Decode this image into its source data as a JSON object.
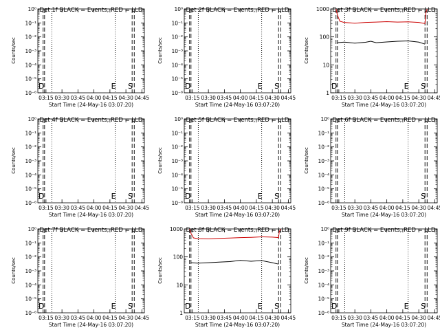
{
  "figure": {
    "background": "#ffffff",
    "event_color": "#000000",
    "lld_color": "#cc0000"
  },
  "chart_data": [
    {
      "type": "line",
      "title": "Det 1f BLACK = Events, RED = LLD",
      "xlabel": "Start Time (24-May-16 03:07:20)",
      "ylabel": "Counts/sec",
      "xticks": [
        "03:15",
        "03:30",
        "03:45",
        "04:00",
        "04:15",
        "04:30",
        "04:45"
      ],
      "xlim": [
        "03:07:20",
        "04:47:20"
      ],
      "yscale": "log",
      "yticks": [
        "10⁰",
        "10⁻¹",
        "10⁻²",
        "10⁻³",
        "10⁻⁴",
        "10⁻⁵",
        "10⁻⁶"
      ],
      "ylim": [
        1e-06,
        1
      ],
      "grid": false,
      "markers": [
        {
          "time": "03:12:20",
          "style": "dashed",
          "label": "D"
        },
        {
          "time": "03:13:40",
          "style": "dashed",
          "label": ""
        },
        {
          "time": "03:20:30",
          "style": "dotted",
          "label": ""
        },
        {
          "time": "04:20:00",
          "style": "dotted",
          "label": "E"
        },
        {
          "time": "04:35:50",
          "style": "dashed",
          "label": "S"
        },
        {
          "time": "04:37:50",
          "style": "dashed",
          "label": ""
        }
      ],
      "series": []
    },
    {
      "type": "line",
      "title": "Det 2f BLACK = Events, RED = LLD",
      "xlabel": "Start Time (24-May-16 03:07:20)",
      "ylabel": "Counts/sec",
      "xticks": [
        "03:15",
        "03:30",
        "03:45",
        "04:00",
        "04:15",
        "04:30",
        "04:45"
      ],
      "xlim": [
        "03:07:20",
        "04:47:20"
      ],
      "yscale": "log",
      "yticks": [
        "10⁰",
        "10⁻¹",
        "10⁻²",
        "10⁻³",
        "10⁻⁴",
        "10⁻⁵",
        "10⁻⁶"
      ],
      "ylim": [
        1e-06,
        1
      ],
      "grid": false,
      "markers": [
        {
          "time": "03:12:20",
          "style": "dashed",
          "label": "D"
        },
        {
          "time": "03:13:40",
          "style": "dashed",
          "label": ""
        },
        {
          "time": "03:20:30",
          "style": "dotted",
          "label": ""
        },
        {
          "time": "04:20:00",
          "style": "dotted",
          "label": "E"
        },
        {
          "time": "04:35:50",
          "style": "dashed",
          "label": "S"
        },
        {
          "time": "04:37:50",
          "style": "dashed",
          "label": ""
        }
      ],
      "series": []
    },
    {
      "type": "line",
      "title": "Det 3f BLACK = Events, RED = LLD",
      "xlabel": "Start Time (24-May-16 03:07:20)",
      "ylabel": "Counts/sec",
      "xticks": [
        "03:15",
        "03:30",
        "03:45",
        "04:00",
        "04:15",
        "04:30",
        "04:45"
      ],
      "xlim": [
        "03:07:20",
        "04:47:20"
      ],
      "yscale": "log",
      "yticks": [
        "1",
        "10",
        "100",
        "1000"
      ],
      "ylim": [
        1,
        1000
      ],
      "grid": false,
      "markers": [
        {
          "time": "03:12:20",
          "style": "dashed",
          "label": "D"
        },
        {
          "time": "03:13:40",
          "style": "dashed",
          "label": ""
        },
        {
          "time": "03:20:30",
          "style": "dotted",
          "label": ""
        },
        {
          "time": "04:20:00",
          "style": "dotted",
          "label": "E"
        },
        {
          "time": "04:35:50",
          "style": "dashed",
          "label": "S"
        },
        {
          "time": "04:37:50",
          "style": "dashed",
          "label": ""
        }
      ],
      "series": [
        {
          "role": "events",
          "color": "#000000",
          "x": [
            "03:13:40",
            "03:20",
            "03:30",
            "03:40",
            "03:45",
            "03:50",
            "04:00",
            "04:10",
            "04:20",
            "04:30",
            "04:35:50"
          ],
          "y": [
            62,
            65,
            60,
            64,
            70,
            62,
            66,
            70,
            72,
            65,
            55
          ]
        },
        {
          "role": "lld",
          "color": "#cc0000",
          "x": [
            "03:12:20",
            "03:13:40",
            "03:16",
            "03:20",
            "03:30",
            "03:40",
            "03:50",
            "04:00",
            "04:10",
            "04:20",
            "04:30",
            "04:35:50",
            "04:36:30",
            "04:37:50"
          ],
          "y": [
            1000,
            600,
            360,
            330,
            310,
            330,
            340,
            350,
            340,
            345,
            330,
            300,
            700,
            1000
          ]
        }
      ]
    },
    {
      "type": "line",
      "title": "Det 4f BLACK = Events, RED = LLD",
      "xlabel": "Start Time (24-May-16 03:07:20)",
      "ylabel": "Counts/sec",
      "xticks": [
        "03:15",
        "03:30",
        "03:45",
        "04:00",
        "04:15",
        "04:30",
        "04:45"
      ],
      "xlim": [
        "03:07:20",
        "04:47:20"
      ],
      "yscale": "log",
      "yticks": [
        "10⁰",
        "10⁻¹",
        "10⁻²",
        "10⁻³",
        "10⁻⁴",
        "10⁻⁵",
        "10⁻⁶"
      ],
      "ylim": [
        1e-06,
        1
      ],
      "grid": false,
      "markers": [
        {
          "time": "03:12:20",
          "style": "dashed",
          "label": "D"
        },
        {
          "time": "03:13:40",
          "style": "dashed",
          "label": ""
        },
        {
          "time": "03:20:30",
          "style": "dotted",
          "label": ""
        },
        {
          "time": "04:20:00",
          "style": "dotted",
          "label": "E"
        },
        {
          "time": "04:35:50",
          "style": "dashed",
          "label": "S"
        },
        {
          "time": "04:37:50",
          "style": "dashed",
          "label": ""
        }
      ],
      "series": []
    },
    {
      "type": "line",
      "title": "Det 5f BLACK = Events, RED = LLD",
      "xlabel": "Start Time (24-May-16 03:07:20)",
      "ylabel": "Counts/sec",
      "xticks": [
        "03:15",
        "03:30",
        "03:45",
        "04:00",
        "04:15",
        "04:30",
        "04:45"
      ],
      "xlim": [
        "03:07:20",
        "04:47:20"
      ],
      "yscale": "log",
      "yticks": [
        "10⁰",
        "10⁻¹",
        "10⁻²",
        "10⁻³",
        "10⁻⁴",
        "10⁻⁵",
        "10⁻⁶"
      ],
      "ylim": [
        1e-06,
        1
      ],
      "grid": false,
      "markers": [
        {
          "time": "03:12:20",
          "style": "dashed",
          "label": "D"
        },
        {
          "time": "03:13:40",
          "style": "dashed",
          "label": ""
        },
        {
          "time": "03:20:30",
          "style": "dotted",
          "label": ""
        },
        {
          "time": "04:20:00",
          "style": "dotted",
          "label": "E"
        },
        {
          "time": "04:35:50",
          "style": "dashed",
          "label": "S"
        },
        {
          "time": "04:37:50",
          "style": "dashed",
          "label": ""
        }
      ],
      "series": []
    },
    {
      "type": "line",
      "title": "Det 6f BLACK = Events, RED = LLD",
      "xlabel": "Start Time (24-May-16 03:07:20)",
      "ylabel": "Counts/sec",
      "xticks": [
        "03:15",
        "03:30",
        "03:45",
        "04:00",
        "04:15",
        "04:30",
        "04:45"
      ],
      "xlim": [
        "03:07:20",
        "04:47:20"
      ],
      "yscale": "log",
      "yticks": [
        "10⁰",
        "10⁻¹",
        "10⁻²",
        "10⁻³",
        "10⁻⁴",
        "10⁻⁵",
        "10⁻⁶"
      ],
      "ylim": [
        1e-06,
        1
      ],
      "grid": false,
      "markers": [
        {
          "time": "03:12:20",
          "style": "dashed",
          "label": ""
        },
        {
          "time": "03:13:40",
          "style": "dashed",
          "label": ""
        },
        {
          "time": "03:20:30",
          "style": "dotted",
          "label": ""
        },
        {
          "time": "04:20:00",
          "style": "dotted",
          "label": ""
        },
        {
          "time": "04:35:50",
          "style": "dashed",
          "label": "S"
        },
        {
          "time": "04:37:50",
          "style": "dashed",
          "label": ""
        }
      ],
      "series": []
    },
    {
      "type": "line",
      "title": "Det 7f BLACK = Events, RED = LLD",
      "xlabel": "Start Time (24-May-16 03:07:20)",
      "ylabel": "Counts/sec",
      "xticks": [
        "03:15",
        "03:30",
        "03:45",
        "04:00",
        "04:15",
        "04:30",
        "04:45"
      ],
      "xlim": [
        "03:07:20",
        "04:47:20"
      ],
      "yscale": "log",
      "yticks": [
        "10⁰",
        "10⁻¹",
        "10⁻²",
        "10⁻³",
        "10⁻⁴",
        "10⁻⁵",
        "10⁻⁶"
      ],
      "ylim": [
        1e-06,
        1
      ],
      "grid": false,
      "markers": [
        {
          "time": "03:12:20",
          "style": "dashed",
          "label": "D"
        },
        {
          "time": "03:13:40",
          "style": "dashed",
          "label": ""
        },
        {
          "time": "03:20:30",
          "style": "dotted",
          "label": ""
        },
        {
          "time": "04:20:00",
          "style": "dotted",
          "label": "E"
        },
        {
          "time": "04:35:50",
          "style": "dashed",
          "label": "S"
        },
        {
          "time": "04:37:50",
          "style": "dashed",
          "label": ""
        }
      ],
      "series": []
    },
    {
      "type": "line",
      "title": "Det 8f BLACK = Events, RED = LLD",
      "xlabel": "Start Time (24-May-16 03:07:20)",
      "ylabel": "Counts/sec",
      "xticks": [
        "03:15",
        "03:30",
        "03:45",
        "04:00",
        "04:15",
        "04:30",
        "04:45"
      ],
      "xlim": [
        "03:07:20",
        "04:47:20"
      ],
      "yscale": "log",
      "yticks": [
        "1",
        "10",
        "100",
        "1000"
      ],
      "ylim": [
        1,
        1000
      ],
      "grid": false,
      "markers": [
        {
          "time": "03:12:20",
          "style": "dashed",
          "label": "D"
        },
        {
          "time": "03:13:40",
          "style": "dashed",
          "label": ""
        },
        {
          "time": "03:20:30",
          "style": "dotted",
          "label": ""
        },
        {
          "time": "04:20:00",
          "style": "dotted",
          "label": "E"
        },
        {
          "time": "04:35:50",
          "style": "dashed",
          "label": "S"
        },
        {
          "time": "04:37:50",
          "style": "dashed",
          "label": ""
        }
      ],
      "series": [
        {
          "role": "events",
          "color": "#000000",
          "x": [
            "03:13:40",
            "03:20",
            "03:30",
            "03:40",
            "03:50",
            "04:00",
            "04:10",
            "04:20",
            "04:30",
            "04:35:50"
          ],
          "y": [
            62,
            60,
            62,
            65,
            68,
            75,
            70,
            74,
            62,
            55
          ]
        },
        {
          "role": "lld",
          "color": "#cc0000",
          "x": [
            "03:12:20",
            "03:13:40",
            "03:16",
            "03:20",
            "03:30",
            "03:40",
            "03:50",
            "04:00",
            "04:10",
            "04:20",
            "04:30",
            "04:35:50",
            "04:36:30",
            "04:37:50"
          ],
          "y": [
            1000,
            700,
            480,
            450,
            440,
            460,
            470,
            490,
            500,
            520,
            510,
            490,
            800,
            1000
          ]
        }
      ]
    },
    {
      "type": "line",
      "title": "Det 9f BLACK = Events, RED = LLD",
      "xlabel": "Start Time (24-May-16 03:07:20)",
      "ylabel": "Counts/sec",
      "xticks": [
        "03:15",
        "03:30",
        "03:45",
        "04:00",
        "04:15",
        "04:30",
        "04:45"
      ],
      "xlim": [
        "03:07:20",
        "04:47:20"
      ],
      "yscale": "log",
      "yticks": [
        "10⁰",
        "10⁻¹",
        "10⁻²",
        "10⁻³",
        "10⁻⁴",
        "10⁻⁵",
        "10⁻⁶"
      ],
      "ylim": [
        1e-06,
        1
      ],
      "grid": false,
      "markers": [
        {
          "time": "03:12:20",
          "style": "dashed",
          "label": "D"
        },
        {
          "time": "03:13:40",
          "style": "dashed",
          "label": ""
        },
        {
          "time": "03:20:30",
          "style": "dotted",
          "label": ""
        },
        {
          "time": "04:20:00",
          "style": "dotted",
          "label": "E"
        },
        {
          "time": "04:35:50",
          "style": "dashed",
          "label": "S"
        },
        {
          "time": "04:37:50",
          "style": "dashed",
          "label": ""
        }
      ],
      "series": []
    }
  ]
}
